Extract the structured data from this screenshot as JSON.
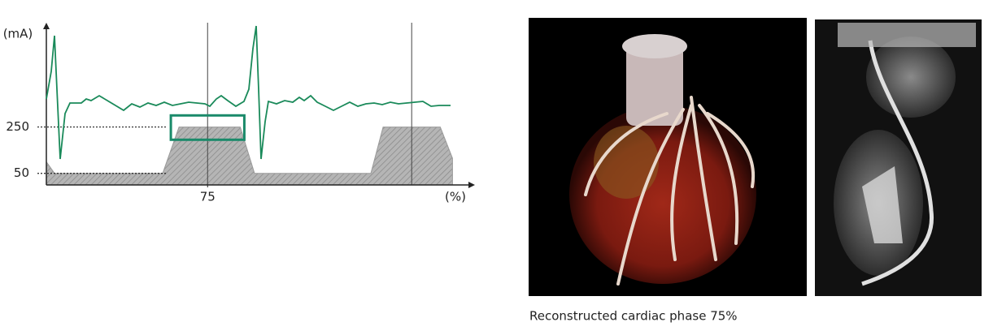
{
  "chart_data": {
    "type": "area",
    "ylabel": "(mA)",
    "xlabel": "(%)",
    "x": [
      -4,
      0,
      53,
      61,
      91,
      98,
      155,
      161,
      189,
      195,
      195
    ],
    "values": [
      100,
      50,
      50,
      250,
      250,
      50,
      50,
      250,
      250,
      115,
      0
    ],
    "color": "#aaaaaa",
    "xlim": [
      -4,
      206
    ],
    "ylim": [
      0,
      700
    ],
    "xticks": [
      75
    ],
    "yticks": [
      50,
      250
    ],
    "vlines": [
      75,
      175
    ],
    "highlight": {
      "x": [
        57,
        93
      ],
      "y": [
        195,
        300
      ],
      "color": "#1a8a6a"
    },
    "ecg_color": "#1a8a5a"
  },
  "caption": "Reconstructed cardiac phase 75%"
}
